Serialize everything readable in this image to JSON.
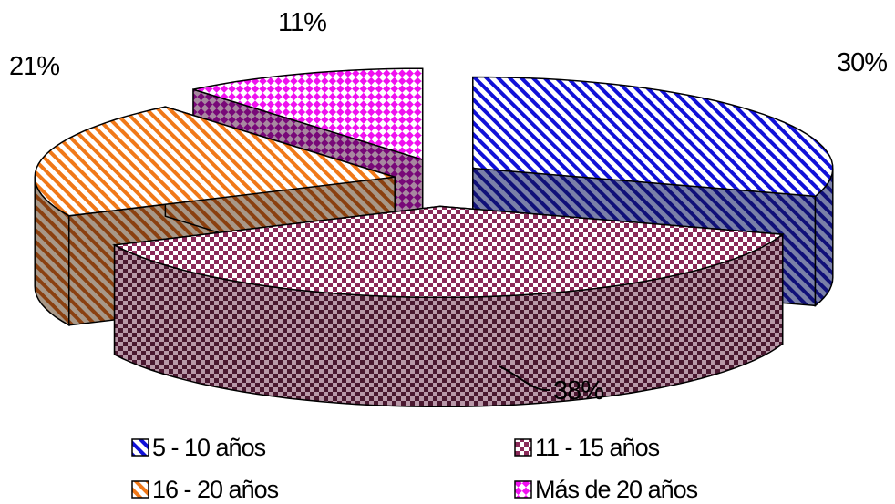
{
  "chart_data": {
    "type": "pie",
    "style": "3d-exploded",
    "categories": [
      "5 - 10 años",
      "11 - 15 años",
      "16 - 20 años",
      "Más de 20 años"
    ],
    "values": [
      30,
      38,
      21,
      11
    ],
    "labels": [
      "30%",
      "38%",
      "21%",
      "11%"
    ],
    "colors": [
      "#1010d8",
      "#7a2850",
      "#f07818",
      "#f010f0"
    ],
    "patterns": [
      "diagonal-stripes",
      "checkerboard",
      "diagonal-stripes",
      "diamond-check"
    ],
    "legend_position": "bottom",
    "legend": [
      "5 - 10 años",
      "11 - 15 años",
      "16 - 20 años",
      "Más de 20 años"
    ]
  }
}
